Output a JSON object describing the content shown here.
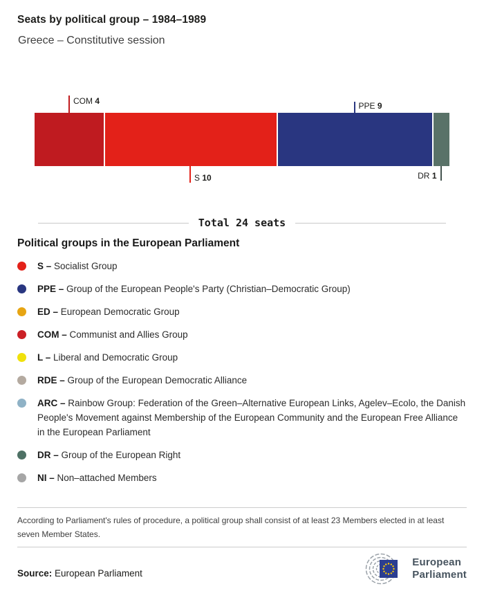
{
  "header": {
    "title": "Seats by political group – 1984–1989",
    "subtitle": "Greece – Constitutive session"
  },
  "chart_data": {
    "type": "bar",
    "orientation": "horizontal-stacked",
    "title": "Seats by political group – 1984–1989",
    "subtitle": "Greece – Constitutive session",
    "total_seats": 24,
    "total_label": "Total 24 seats",
    "categories": [
      "COM",
      "S",
      "PPE",
      "DR"
    ],
    "values": [
      4,
      10,
      9,
      1
    ],
    "segments": [
      {
        "group": "COM",
        "seats": 4,
        "color": "#bf1b20",
        "tick_color": "#c0191d",
        "label_position": "above",
        "label_side": "right",
        "tick_len": 25
      },
      {
        "group": "S",
        "seats": 10,
        "color": "#e32119",
        "tick_color": "#e32119",
        "label_position": "below",
        "label_side": "right",
        "tick_len": 24
      },
      {
        "group": "PPE",
        "seats": 9,
        "color": "#293680",
        "tick_color": "#293680",
        "label_position": "above",
        "label_side": "right",
        "tick_len": 16
      },
      {
        "group": "DR",
        "seats": 1,
        "color": "#597268",
        "tick_color": "#44534e",
        "label_position": "below",
        "label_side": "left",
        "tick_len": 21
      }
    ]
  },
  "legend": {
    "heading": "Political groups in the European Parliament",
    "items": [
      {
        "abbr": "S –",
        "desc": "Socialist Group",
        "color": "#e32119"
      },
      {
        "abbr": "PPE –",
        "desc": "Group of the European People's Party (Christian–Democratic Group)",
        "color": "#293680"
      },
      {
        "abbr": "ED –",
        "desc": "European Democratic Group",
        "color": "#e7a513"
      },
      {
        "abbr": "COM –",
        "desc": "Communist and Allies Group",
        "color": "#cb2026"
      },
      {
        "abbr": "L –",
        "desc": "Liberal and Democratic Group",
        "color": "#f0e10c"
      },
      {
        "abbr": "RDE –",
        "desc": "Group of the European Democratic Alliance",
        "color": "#b4aaa0"
      },
      {
        "abbr": "ARC –",
        "desc": "Rainbow Group: Federation of the Green–Alternative European Links, Agelev–Ecolo, the Danish People's Movement against Membership of the European Community and the European Free Alliance in the European Parliament",
        "color": "#8fb2c6"
      },
      {
        "abbr": "DR –",
        "desc": "Group of the European Right",
        "color": "#4e7165"
      },
      {
        "abbr": "NI –",
        "desc": "Non–attached Members",
        "color": "#a6a6a6"
      }
    ]
  },
  "footnote": "According to Parliament's rules of procedure, a political group shall consist of at least 23 Members elected in at least seven Member States.",
  "source": {
    "label": "Source:",
    "value": "European Parliament"
  },
  "logo": {
    "line1": "European",
    "line2": "Parliament",
    "flag_color": "#2b3e91",
    "star_color": "#ffcc00",
    "arc_color": "#9aa1a8"
  }
}
